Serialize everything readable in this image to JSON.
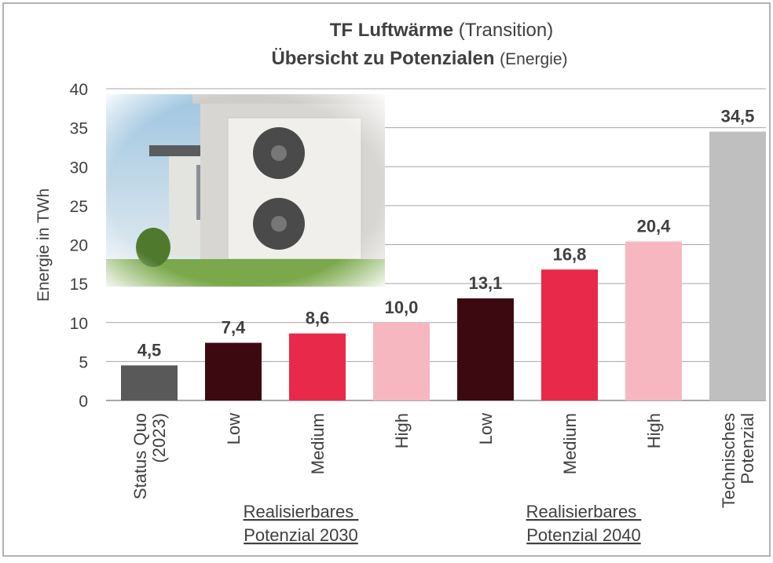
{
  "chart_data": {
    "type": "bar",
    "title_bold": "TF Luftwärme",
    "title_regular": "(Transition)",
    "subtitle_bold": "Übersicht zu Potenzialen",
    "subtitle_regular": "(Energie)",
    "y_label": "Energie in TWh",
    "categories": [
      "Status Quo\n(2023)",
      "Low",
      "Medium",
      "High",
      "Low",
      "Medium",
      "High",
      "Technisches\nPotenzial"
    ],
    "values": [
      4.5,
      7.4,
      8.6,
      10.0,
      13.1,
      16.8,
      20.4,
      34.5
    ],
    "value_labels": [
      "4,5",
      "7,4",
      "8,6",
      "10,0",
      "13,1",
      "16,8",
      "20,4",
      "34,5"
    ],
    "colors": [
      "#595959",
      "#3d0910",
      "#e9294a",
      "#f7b7c1",
      "#3d0910",
      "#e9294a",
      "#f7b7c1",
      "#bfbfbf"
    ],
    "groups": [
      "Realisierbares \nPotenzial 2030",
      "Realisierbares \nPotenzial 2040"
    ],
    "ylim": [
      0,
      40
    ],
    "yticks": [
      0,
      5,
      10,
      15,
      20,
      25,
      30,
      35,
      40
    ],
    "grid": true
  }
}
